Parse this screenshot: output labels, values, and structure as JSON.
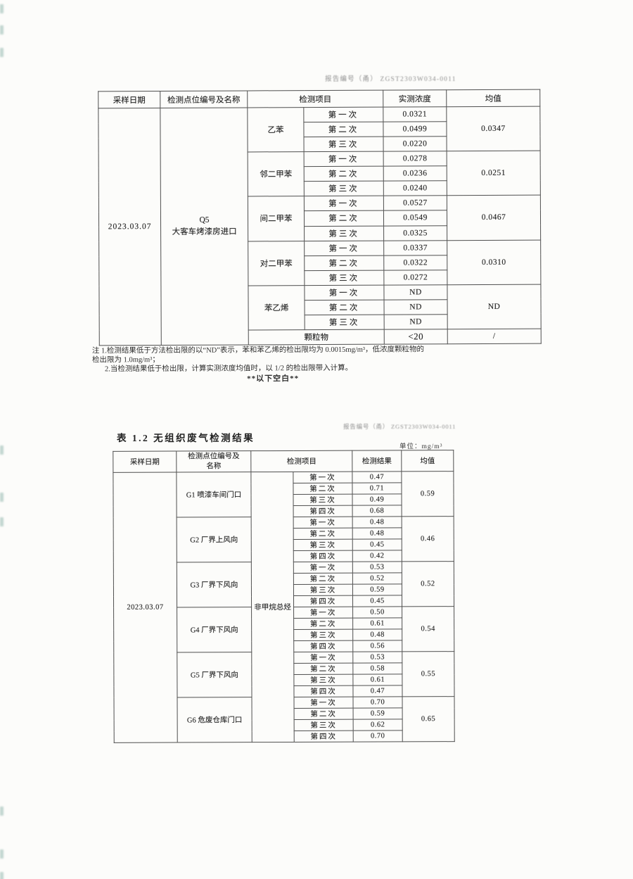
{
  "page": {
    "report_no": "报告编号（甬） ZGST2303W034-0011",
    "report_no_2": "报告编号（甬） ZGST2303W034-0011"
  },
  "colors": {
    "table_border": "#4f4f4f",
    "faint_stamp_text": "#909090",
    "edge_mark_teal": "#7da99e",
    "paper": "#fcfcfa"
  },
  "table1": {
    "headers": [
      "采样日期",
      "检测点位编号及名称",
      "检测项目",
      "实测浓度",
      "均值"
    ],
    "date": "2023.03.07",
    "point_code": "Q5",
    "point_name": "大客车烤漆房进口",
    "groups": [
      {
        "item": "乙苯",
        "trials": [
          {
            "label": "第一次",
            "value": "0.0321"
          },
          {
            "label": "第二次",
            "value": "0.0499"
          },
          {
            "label": "第三次",
            "value": "0.0220"
          }
        ],
        "mean": "0.0347"
      },
      {
        "item": "邻二甲苯",
        "trials": [
          {
            "label": "第一次",
            "value": "0.0278"
          },
          {
            "label": "第二次",
            "value": "0.0236"
          },
          {
            "label": "第三次",
            "value": "0.0240"
          }
        ],
        "mean": "0.0251"
      },
      {
        "item": "间二甲苯",
        "trials": [
          {
            "label": "第一次",
            "value": "0.0527"
          },
          {
            "label": "第二次",
            "value": "0.0549"
          },
          {
            "label": "第三次",
            "value": "0.0325"
          }
        ],
        "mean": "0.0467"
      },
      {
        "item": "对二甲苯",
        "trials": [
          {
            "label": "第一次",
            "value": "0.0337"
          },
          {
            "label": "第二次",
            "value": "0.0322"
          },
          {
            "label": "第三次",
            "value": "0.0272"
          }
        ],
        "mean": "0.0310"
      },
      {
        "item": "苯乙烯",
        "trials": [
          {
            "label": "第一次",
            "value": "ND"
          },
          {
            "label": "第二次",
            "value": "ND"
          },
          {
            "label": "第三次",
            "value": "ND"
          }
        ],
        "mean": "ND"
      }
    ],
    "particulate": {
      "item": "颗粒物",
      "result": "<20",
      "mean": "/"
    }
  },
  "note": {
    "line1": "注 1.检测结果低于方法检出限的以“ND”表示，苯和苯乙烯的检出限均为 0.0015mg/m³，低浓度颗粒物的",
    "line2": "检出限为 1.0mg/m³；",
    "line3": "2.当检测结果低于检出限，计算实测浓度均值时，以 1/2 的检出限带入计算。",
    "below_blank": "**以下空白**"
  },
  "table2": {
    "title": "表 1.2  无组织废气检测结果",
    "unit": "单位：mg/m³",
    "headers": [
      "采样日期",
      "检测点位编号及名称",
      "检测项目",
      "检测结果",
      "均值"
    ],
    "date": "2023.03.07",
    "item": "非甲烷总烃",
    "groups": [
      {
        "point": "G1  喷漆车间门口",
        "trials": [
          {
            "label": "第一次",
            "value": "0.47"
          },
          {
            "label": "第二次",
            "value": "0.71"
          },
          {
            "label": "第三次",
            "value": "0.49"
          },
          {
            "label": "第四次",
            "value": "0.68"
          }
        ],
        "mean": "0.59"
      },
      {
        "point": "G2  厂界上风向",
        "trials": [
          {
            "label": "第一次",
            "value": "0.48"
          },
          {
            "label": "第二次",
            "value": "0.48"
          },
          {
            "label": "第三次",
            "value": "0.45"
          },
          {
            "label": "第四次",
            "value": "0.42"
          }
        ],
        "mean": "0.46"
      },
      {
        "point": "G3  厂界下风向",
        "trials": [
          {
            "label": "第一次",
            "value": "0.53"
          },
          {
            "label": "第二次",
            "value": "0.52"
          },
          {
            "label": "第三次",
            "value": "0.59"
          },
          {
            "label": "第四次",
            "value": "0.45"
          }
        ],
        "mean": "0.52"
      },
      {
        "point": "G4  厂界下风向",
        "trials": [
          {
            "label": "第一次",
            "value": "0.50"
          },
          {
            "label": "第二次",
            "value": "0.61"
          },
          {
            "label": "第三次",
            "value": "0.48"
          },
          {
            "label": "第四次",
            "value": "0.56"
          }
        ],
        "mean": "0.54"
      },
      {
        "point": "G5  厂界下风向",
        "trials": [
          {
            "label": "第一次",
            "value": "0.53"
          },
          {
            "label": "第二次",
            "value": "0.58"
          },
          {
            "label": "第三次",
            "value": "0.61"
          },
          {
            "label": "第四次",
            "value": "0.47"
          }
        ],
        "mean": "0.55"
      },
      {
        "point": "G6  危废仓库门口",
        "trials": [
          {
            "label": "第一次",
            "value": "0.70"
          },
          {
            "label": "第二次",
            "value": "0.59"
          },
          {
            "label": "第三次",
            "value": "0.62"
          },
          {
            "label": "第四次",
            "value": "0.70"
          }
        ],
        "mean": "0.65"
      }
    ]
  },
  "edge_marks": [
    6,
    36,
    68,
    633,
    700,
    735,
    1146,
    1207,
    1239
  ]
}
